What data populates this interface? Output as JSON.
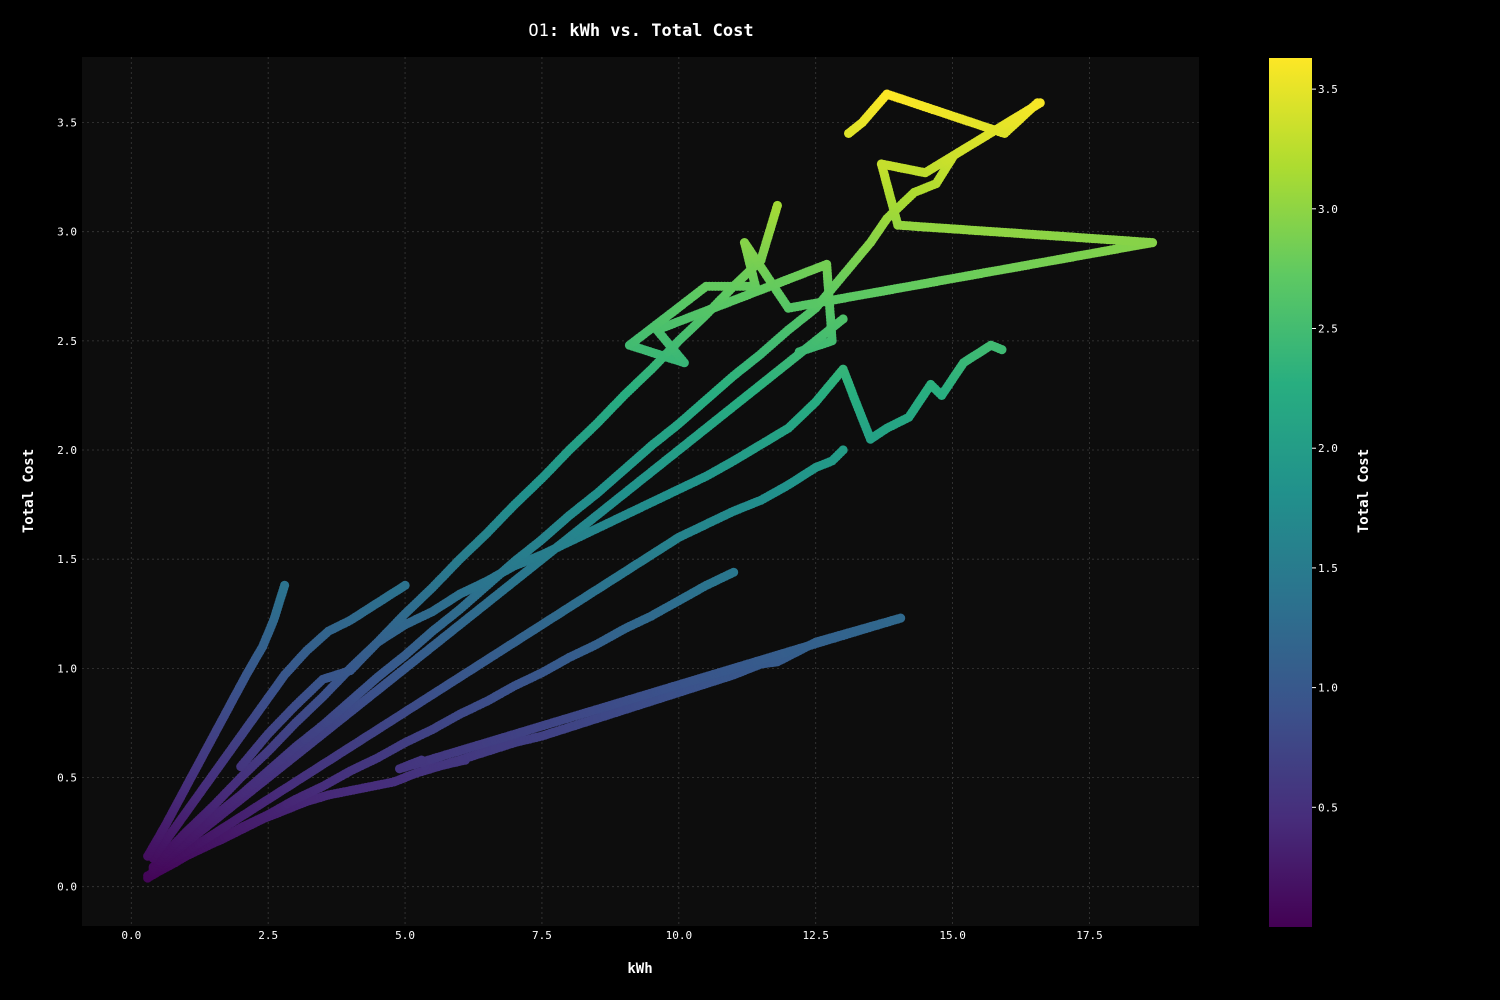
{
  "chart_data": {
    "type": "scatter",
    "title_prefix": "O1",
    "title_suffix": ": kWh vs. Total Cost",
    "xlabel": "kWh",
    "ylabel": "Total Cost",
    "colorbar_label": "Total Cost",
    "colormap": "viridis",
    "xlim": [
      -0.9,
      19.5
    ],
    "ylim": [
      -0.18,
      3.8
    ],
    "clim": [
      0.0,
      3.63
    ],
    "x_ticks": [
      0.0,
      2.5,
      5.0,
      7.5,
      10.0,
      12.5,
      15.0,
      17.5
    ],
    "x_tick_labels": [
      "0.0",
      "2.5",
      "5.0",
      "7.5",
      "10.0",
      "12.5",
      "15.0",
      "17.5"
    ],
    "y_ticks": [
      0.0,
      0.5,
      1.0,
      1.5,
      2.0,
      2.5,
      3.0,
      3.5
    ],
    "y_tick_labels": [
      "0.0",
      "0.5",
      "1.0",
      "1.5",
      "2.0",
      "2.5",
      "3.0",
      "3.5"
    ],
    "colorbar_ticks": [
      0.5,
      1.0,
      1.5,
      2.0,
      2.5,
      3.0,
      3.5
    ],
    "colorbar_tick_labels": [
      "0.5",
      "1.0",
      "1.5",
      "2.0",
      "2.5",
      "3.0",
      "3.5"
    ],
    "grid": true,
    "background": "#0d0d0d",
    "series": [
      {
        "points": [
          [
            0.3,
            0.04
          ],
          [
            0.5,
            0.07
          ],
          [
            0.8,
            0.11
          ],
          [
            1.0,
            0.14
          ],
          [
            1.3,
            0.18
          ],
          [
            1.6,
            0.21
          ],
          [
            2.0,
            0.26
          ],
          [
            2.4,
            0.31
          ],
          [
            2.8,
            0.35
          ],
          [
            3.2,
            0.39
          ],
          [
            3.6,
            0.42
          ],
          [
            4.0,
            0.44
          ],
          [
            4.4,
            0.46
          ],
          [
            4.8,
            0.48
          ],
          [
            5.2,
            0.52
          ],
          [
            5.6,
            0.55
          ],
          [
            6.0,
            0.58
          ],
          [
            6.5,
            0.62
          ],
          [
            7.0,
            0.66
          ],
          [
            7.5,
            0.69
          ],
          [
            8.0,
            0.73
          ],
          [
            8.5,
            0.77
          ],
          [
            9.0,
            0.81
          ],
          [
            9.5,
            0.85
          ],
          [
            10.0,
            0.89
          ],
          [
            10.5,
            0.93
          ],
          [
            11.0,
            0.97
          ],
          [
            11.5,
            1.02
          ],
          [
            11.8,
            1.03
          ],
          [
            12.5,
            1.12
          ],
          [
            14.05,
            1.23
          ],
          [
            4.9,
            0.54
          ],
          [
            5.3,
            0.58
          ],
          [
            5.4,
            0.54
          ],
          [
            6.1,
            0.58
          ]
        ]
      },
      {
        "points": [
          [
            0.3,
            0.05
          ],
          [
            0.6,
            0.09
          ],
          [
            1.0,
            0.14
          ],
          [
            1.5,
            0.2
          ],
          [
            2.0,
            0.27
          ],
          [
            2.5,
            0.33
          ],
          [
            3.0,
            0.4
          ],
          [
            3.5,
            0.46
          ],
          [
            4.0,
            0.53
          ],
          [
            4.5,
            0.59
          ],
          [
            5.0,
            0.66
          ],
          [
            5.5,
            0.72
          ],
          [
            6.0,
            0.79
          ],
          [
            6.5,
            0.85
          ],
          [
            7.0,
            0.92
          ],
          [
            7.5,
            0.98
          ],
          [
            8.0,
            1.05
          ],
          [
            8.5,
            1.11
          ],
          [
            9.0,
            1.18
          ],
          [
            9.5,
            1.24
          ],
          [
            10.0,
            1.31
          ],
          [
            10.5,
            1.38
          ],
          [
            11.0,
            1.44
          ]
        ]
      },
      {
        "points": [
          [
            0.4,
            0.07
          ],
          [
            1.0,
            0.16
          ],
          [
            1.5,
            0.24
          ],
          [
            2.0,
            0.32
          ],
          [
            2.5,
            0.4
          ],
          [
            3.0,
            0.48
          ],
          [
            3.5,
            0.56
          ],
          [
            4.0,
            0.64
          ],
          [
            4.5,
            0.72
          ],
          [
            5.0,
            0.8
          ],
          [
            5.5,
            0.88
          ],
          [
            6.0,
            0.96
          ],
          [
            6.5,
            1.04
          ],
          [
            7.0,
            1.12
          ],
          [
            7.5,
            1.2
          ],
          [
            8.0,
            1.28
          ],
          [
            8.5,
            1.36
          ],
          [
            9.0,
            1.44
          ],
          [
            9.5,
            1.52
          ],
          [
            10.0,
            1.6
          ],
          [
            10.5,
            1.66
          ],
          [
            11.0,
            1.72
          ],
          [
            11.5,
            1.77
          ],
          [
            12.0,
            1.84
          ],
          [
            12.5,
            1.92
          ],
          [
            12.8,
            1.95
          ],
          [
            13.0,
            2.0
          ]
        ]
      },
      {
        "points": [
          [
            0.4,
            0.08
          ],
          [
            1.0,
            0.2
          ],
          [
            1.5,
            0.3
          ],
          [
            2.0,
            0.4
          ],
          [
            2.5,
            0.5
          ],
          [
            3.0,
            0.6
          ],
          [
            3.5,
            0.7
          ],
          [
            4.0,
            0.8
          ],
          [
            4.5,
            0.9
          ],
          [
            5.0,
            1.0
          ],
          [
            5.5,
            1.1
          ],
          [
            6.0,
            1.2
          ],
          [
            6.5,
            1.3
          ],
          [
            7.0,
            1.4
          ],
          [
            7.5,
            1.5
          ],
          [
            8.0,
            1.6
          ],
          [
            8.5,
            1.7
          ],
          [
            9.0,
            1.8
          ],
          [
            9.5,
            1.9
          ],
          [
            10.0,
            2.0
          ],
          [
            10.5,
            2.1
          ],
          [
            11.0,
            2.2
          ],
          [
            11.5,
            2.3
          ],
          [
            12.0,
            2.4
          ],
          [
            12.5,
            2.5
          ],
          [
            13.0,
            2.6
          ]
        ]
      },
      {
        "points": [
          [
            0.4,
            0.09
          ],
          [
            1.0,
            0.21
          ],
          [
            1.5,
            0.32
          ],
          [
            2.0,
            0.42
          ],
          [
            2.5,
            0.53
          ],
          [
            3.0,
            0.64
          ],
          [
            3.5,
            0.74
          ],
          [
            4.0,
            0.85
          ],
          [
            4.5,
            0.96
          ],
          [
            5.0,
            1.06
          ],
          [
            5.5,
            1.17
          ],
          [
            6.0,
            1.27
          ],
          [
            6.5,
            1.38
          ],
          [
            7.0,
            1.49
          ],
          [
            7.5,
            1.59
          ],
          [
            8.0,
            1.7
          ],
          [
            8.5,
            1.8
          ],
          [
            9.0,
            1.91
          ],
          [
            9.5,
            2.02
          ],
          [
            10.0,
            2.12
          ],
          [
            10.5,
            2.23
          ],
          [
            11.0,
            2.34
          ],
          [
            11.5,
            2.44
          ],
          [
            12.0,
            2.55
          ],
          [
            12.5,
            2.65
          ],
          [
            13.0,
            2.8
          ],
          [
            13.5,
            2.95
          ],
          [
            13.8,
            3.06
          ],
          [
            14.3,
            3.18
          ],
          [
            14.7,
            3.22
          ],
          [
            15.0,
            3.34
          ]
        ]
      },
      {
        "points": [
          [
            0.5,
            0.12
          ],
          [
            1.0,
            0.25
          ],
          [
            1.5,
            0.37
          ],
          [
            2.0,
            0.5
          ],
          [
            2.5,
            0.62
          ],
          [
            3.0,
            0.75
          ],
          [
            3.5,
            0.87
          ],
          [
            4.0,
            1.0
          ],
          [
            4.5,
            1.12
          ],
          [
            5.0,
            1.25
          ],
          [
            5.5,
            1.37
          ],
          [
            6.0,
            1.5
          ],
          [
            6.5,
            1.62
          ],
          [
            7.0,
            1.75
          ],
          [
            7.5,
            1.87
          ],
          [
            8.0,
            2.0
          ],
          [
            8.5,
            2.12
          ],
          [
            9.0,
            2.25
          ],
          [
            9.5,
            2.37
          ],
          [
            10.0,
            2.5
          ],
          [
            10.5,
            2.62
          ],
          [
            11.0,
            2.75
          ],
          [
            11.5,
            2.87
          ],
          [
            11.8,
            3.12
          ]
        ]
      },
      {
        "points": [
          [
            0.4,
            0.13
          ],
          [
            0.8,
            0.27
          ],
          [
            1.2,
            0.41
          ],
          [
            1.6,
            0.55
          ],
          [
            2.0,
            0.69
          ],
          [
            2.4,
            0.83
          ],
          [
            2.8,
            0.97
          ],
          [
            3.2,
            1.08
          ],
          [
            3.6,
            1.17
          ],
          [
            4.0,
            1.22
          ],
          [
            4.5,
            1.3
          ],
          [
            5.0,
            1.38
          ]
        ]
      },
      {
        "points": [
          [
            0.3,
            0.14
          ],
          [
            0.6,
            0.27
          ],
          [
            0.9,
            0.41
          ],
          [
            1.2,
            0.55
          ],
          [
            1.5,
            0.69
          ],
          [
            1.8,
            0.83
          ],
          [
            2.1,
            0.97
          ],
          [
            2.4,
            1.1
          ],
          [
            2.6,
            1.22
          ],
          [
            2.8,
            1.38
          ]
        ]
      },
      {
        "points": [
          [
            2.0,
            0.55
          ],
          [
            2.5,
            0.7
          ],
          [
            3.0,
            0.83
          ],
          [
            3.5,
            0.95
          ],
          [
            4.0,
            0.99
          ],
          [
            4.5,
            1.12
          ],
          [
            5.0,
            1.2
          ],
          [
            5.5,
            1.26
          ],
          [
            6.0,
            1.34
          ],
          [
            6.5,
            1.4
          ],
          [
            7.0,
            1.47
          ],
          [
            7.5,
            1.52
          ],
          [
            8.0,
            1.58
          ],
          [
            8.5,
            1.64
          ],
          [
            9.0,
            1.7
          ],
          [
            9.5,
            1.76
          ],
          [
            10.0,
            1.82
          ],
          [
            10.5,
            1.88
          ],
          [
            11.0,
            1.95
          ],
          [
            12.0,
            2.1
          ],
          [
            12.5,
            2.22
          ],
          [
            13.0,
            2.37
          ],
          [
            13.2,
            2.24
          ],
          [
            13.5,
            2.05
          ],
          [
            13.8,
            2.1
          ],
          [
            14.2,
            2.15
          ],
          [
            14.6,
            2.3
          ],
          [
            14.8,
            2.25
          ],
          [
            15.2,
            2.4
          ],
          [
            15.7,
            2.48
          ],
          [
            15.9,
            2.46
          ]
        ]
      },
      {
        "points": [
          [
            13.1,
            3.45
          ],
          [
            13.35,
            3.5
          ],
          [
            13.8,
            3.63
          ],
          [
            15.95,
            3.45
          ],
          [
            16.55,
            3.59
          ],
          [
            16.6,
            3.59
          ],
          [
            14.5,
            3.27
          ],
          [
            13.7,
            3.31
          ],
          [
            14.0,
            3.03
          ],
          [
            18.65,
            2.95
          ],
          [
            12.0,
            2.65
          ],
          [
            11.2,
            2.95
          ],
          [
            11.4,
            2.75
          ],
          [
            10.5,
            2.75
          ],
          [
            9.1,
            2.48
          ],
          [
            10.1,
            2.4
          ],
          [
            9.6,
            2.55
          ],
          [
            12.7,
            2.85
          ],
          [
            12.8,
            2.5
          ],
          [
            12.2,
            2.45
          ]
        ]
      }
    ]
  }
}
